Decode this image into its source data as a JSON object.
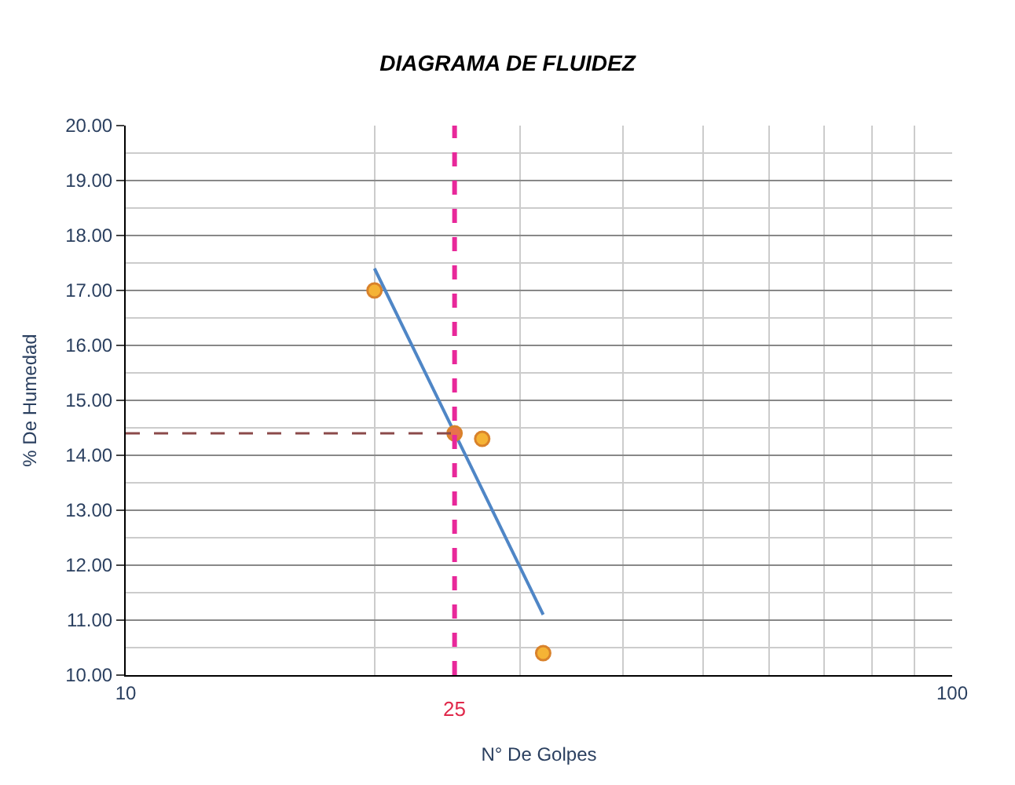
{
  "chart_data": {
    "type": "scatter",
    "title": "DIAGRAMA DE FLUIDEZ",
    "xlabel": "N° De Golpes",
    "ylabel": "% De Humedad",
    "x": [
      20,
      27,
      32
    ],
    "series": [
      {
        "color": "#f5b335",
        "values": [
          17.0,
          14.3,
          10.4
        ],
        "marker": "circle"
      },
      {
        "type": "line",
        "color": "#4f86c6",
        "x": [
          20,
          32
        ],
        "values": [
          17.4,
          11.1
        ],
        "marker": "none",
        "line_style": "solid"
      },
      {
        "color": "#e8734a",
        "x": [
          25
        ],
        "values": [
          14.4
        ],
        "marker": "circle"
      }
    ],
    "log": "x",
    "xlim": [
      10,
      100
    ],
    "xticks": [
      10,
      100
    ],
    "ylim": [
      10,
      20
    ],
    "yticks": [
      {
        "value": 10,
        "label": "10.00"
      },
      {
        "value": 11,
        "label": "11.00"
      },
      {
        "value": 12,
        "label": "12.00"
      },
      {
        "value": 13,
        "label": "13.00"
      },
      {
        "value": 14,
        "label": "14.00"
      },
      {
        "value": 15,
        "label": "15.00"
      },
      {
        "value": 16,
        "label": "16.00"
      },
      {
        "value": 17,
        "label": "17.00"
      },
      {
        "value": 18,
        "label": "18.00"
      },
      {
        "value": 19,
        "label": "19.00"
      },
      {
        "value": 20,
        "label": "20.00"
      }
    ],
    "ref_lines": [
      {
        "axis": "x",
        "value": 25,
        "label": "25",
        "color": "#e8289a",
        "line_style": "dashed"
      },
      {
        "axis": "y",
        "value": 14.4,
        "color": "#8b4a4a",
        "line_style": "dashed"
      }
    ],
    "grid": true
  }
}
